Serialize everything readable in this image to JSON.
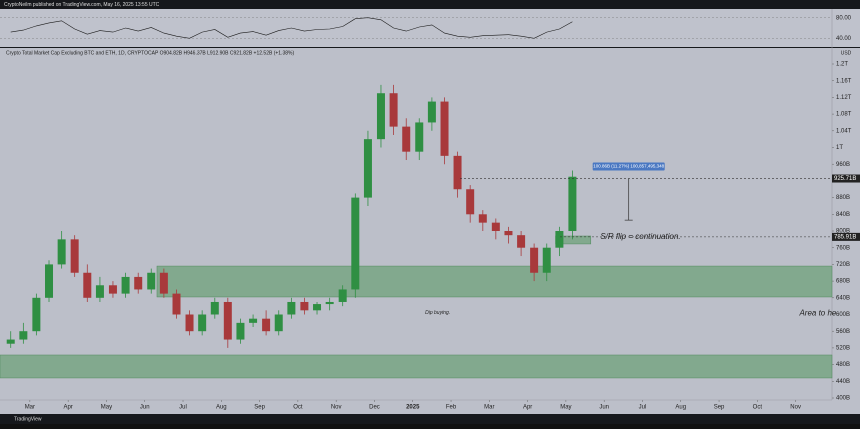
{
  "header": "CryptoNeilm published on TradingView.com, May 16, 2025 13:55 UTC",
  "footer": "TradingView",
  "chart_data": {
    "type": "candlestick",
    "title": "Crypto Total Market Cap Excluding BTC and ETH, 1D, CRYPTOCAP  O904.82B H946.37B L912.90B C921.82B +12.52B (+1.38%)",
    "currency": "USD",
    "x": [
      -0.5,
      -0.17,
      0.17,
      0.5,
      0.83,
      1.17,
      1.5,
      1.83,
      2.17,
      2.5,
      2.83,
      3.17,
      3.5,
      3.83,
      4.17,
      4.5,
      4.83,
      5.17,
      5.5,
      5.83,
      6.17,
      6.5,
      6.83,
      7.17,
      7.5,
      7.83,
      8.17,
      8.5,
      8.83,
      9.17,
      9.5,
      9.83,
      10.17,
      10.5,
      10.83,
      11.17,
      11.5,
      11.83,
      12.17,
      12.5,
      12.83,
      13.17,
      13.5,
      13.83,
      14.17
    ],
    "open": [
      530,
      540,
      560,
      640,
      720,
      780,
      700,
      640,
      670,
      650,
      690,
      660,
      700,
      650,
      600,
      560,
      600,
      630,
      540,
      580,
      590,
      560,
      600,
      630,
      610,
      625,
      630,
      660,
      880,
      1020,
      1130,
      1050,
      990,
      1060,
      1110,
      980,
      900,
      840,
      820,
      800,
      790,
      760,
      700,
      760,
      800
    ],
    "high": [
      560,
      580,
      650,
      730,
      800,
      790,
      720,
      690,
      680,
      700,
      700,
      710,
      710,
      660,
      610,
      610,
      640,
      640,
      590,
      600,
      610,
      610,
      640,
      640,
      630,
      640,
      670,
      890,
      1040,
      1150,
      1150,
      1070,
      1070,
      1120,
      1120,
      990,
      910,
      850,
      830,
      810,
      800,
      770,
      770,
      810,
      945
    ],
    "low": [
      520,
      530,
      550,
      630,
      710,
      690,
      630,
      630,
      640,
      640,
      650,
      650,
      640,
      590,
      550,
      550,
      590,
      520,
      530,
      570,
      550,
      550,
      590,
      600,
      600,
      610,
      620,
      640,
      860,
      1000,
      1030,
      970,
      970,
      1040,
      960,
      880,
      820,
      800,
      780,
      770,
      740,
      680,
      680,
      740,
      780
    ],
    "close": [
      540,
      560,
      640,
      720,
      780,
      700,
      640,
      670,
      650,
      690,
      660,
      700,
      650,
      600,
      560,
      600,
      630,
      540,
      580,
      590,
      560,
      600,
      630,
      610,
      625,
      630,
      660,
      880,
      1020,
      1130,
      1050,
      990,
      1060,
      1110,
      980,
      900,
      840,
      820,
      800,
      790,
      760,
      700,
      760,
      800,
      930
    ],
    "up_color": "#2f8f43",
    "down_color": "#a8393b",
    "xlim": [
      -0.78,
      20.95
    ],
    "xticks": [
      {
        "value": 0,
        "label": "Mar"
      },
      {
        "value": 1,
        "label": "Apr"
      },
      {
        "value": 2,
        "label": "May"
      },
      {
        "value": 3,
        "label": "Jun"
      },
      {
        "value": 4,
        "label": "Jul"
      },
      {
        "value": 5,
        "label": "Aug"
      },
      {
        "value": 6,
        "label": "Sep"
      },
      {
        "value": 7,
        "label": "Oct"
      },
      {
        "value": 8,
        "label": "Nov"
      },
      {
        "value": 9,
        "label": "Dec"
      },
      {
        "value": 10,
        "label": "2025"
      },
      {
        "value": 11,
        "label": "Feb"
      },
      {
        "value": 12,
        "label": "Mar"
      },
      {
        "value": 13,
        "label": "Apr"
      },
      {
        "value": 14,
        "label": "May"
      },
      {
        "value": 15,
        "label": "Jun"
      },
      {
        "value": 16,
        "label": "Jul"
      },
      {
        "value": 17,
        "label": "Aug"
      },
      {
        "value": 18,
        "label": "Sep"
      },
      {
        "value": 19,
        "label": "Oct"
      },
      {
        "value": 20,
        "label": "Nov"
      }
    ],
    "ylim": [
      400,
      1200
    ],
    "yticks": [
      {
        "value": 1200,
        "label": "1.2T"
      },
      {
        "value": 1160,
        "label": "1.16T"
      },
      {
        "value": 1120,
        "label": "1.12T"
      },
      {
        "value": 1080,
        "label": "1.08T"
      },
      {
        "value": 1040,
        "label": "1.04T"
      },
      {
        "value": 1000,
        "label": "1T"
      },
      {
        "value": 960,
        "label": "960B"
      },
      {
        "value": 920,
        "label": "920B"
      },
      {
        "value": 880,
        "label": "880B"
      },
      {
        "value": 840,
        "label": "840B"
      },
      {
        "value": 800,
        "label": "800B"
      },
      {
        "value": 760,
        "label": "760B"
      },
      {
        "value": 720,
        "label": "720B"
      },
      {
        "value": 680,
        "label": "680B"
      },
      {
        "value": 640,
        "label": "640B"
      },
      {
        "value": 600,
        "label": "600B"
      },
      {
        "value": 560,
        "label": "560B"
      },
      {
        "value": 520,
        "label": "520B"
      },
      {
        "value": 480,
        "label": "480B"
      },
      {
        "value": 440,
        "label": "440B"
      },
      {
        "value": 400,
        "label": "400B"
      }
    ],
    "zones": [
      {
        "x": [
          3.32,
          20.95
        ],
        "y": [
          642,
          716
        ]
      },
      {
        "x": [
          -0.78,
          20.95
        ],
        "y": [
          448,
          503
        ]
      },
      {
        "x": [
          13.73,
          14.65
        ],
        "y": [
          769,
          788
        ]
      }
    ],
    "zone_color": "#6fa27a",
    "levels": [
      {
        "value": 925.71,
        "label": "925.71B"
      },
      {
        "value": 785.91,
        "label": "785.91B"
      }
    ],
    "measure": {
      "x": 15.64,
      "y": [
        925.71,
        826
      ],
      "label": "100.86B (11.27%) 100,857,495,348"
    },
    "annotations": [
      {
        "text": "S/R flip = continuation.",
        "x": 14.9,
        "y": 786
      },
      {
        "text": "Dip buying.",
        "x": 10.65,
        "y": 604
      },
      {
        "text": "Area to he",
        "x": 20.1,
        "y": 603
      }
    ],
    "rsi": {
      "values": [
        52,
        56,
        64,
        70,
        74,
        58,
        48,
        55,
        52,
        60,
        54,
        61,
        50,
        44,
        40,
        52,
        57,
        42,
        50,
        53,
        46,
        55,
        60,
        54,
        57,
        58,
        63,
        78,
        80,
        76,
        60,
        54,
        62,
        66,
        50,
        44,
        42,
        45,
        46,
        47,
        44,
        40,
        52,
        58,
        72
      ],
      "ylim": [
        25,
        95
      ],
      "yticks": [
        {
          "value": 80,
          "label": "80.00"
        },
        {
          "value": 40,
          "label": "40.00"
        }
      ],
      "color": "#1a1a1a"
    }
  }
}
